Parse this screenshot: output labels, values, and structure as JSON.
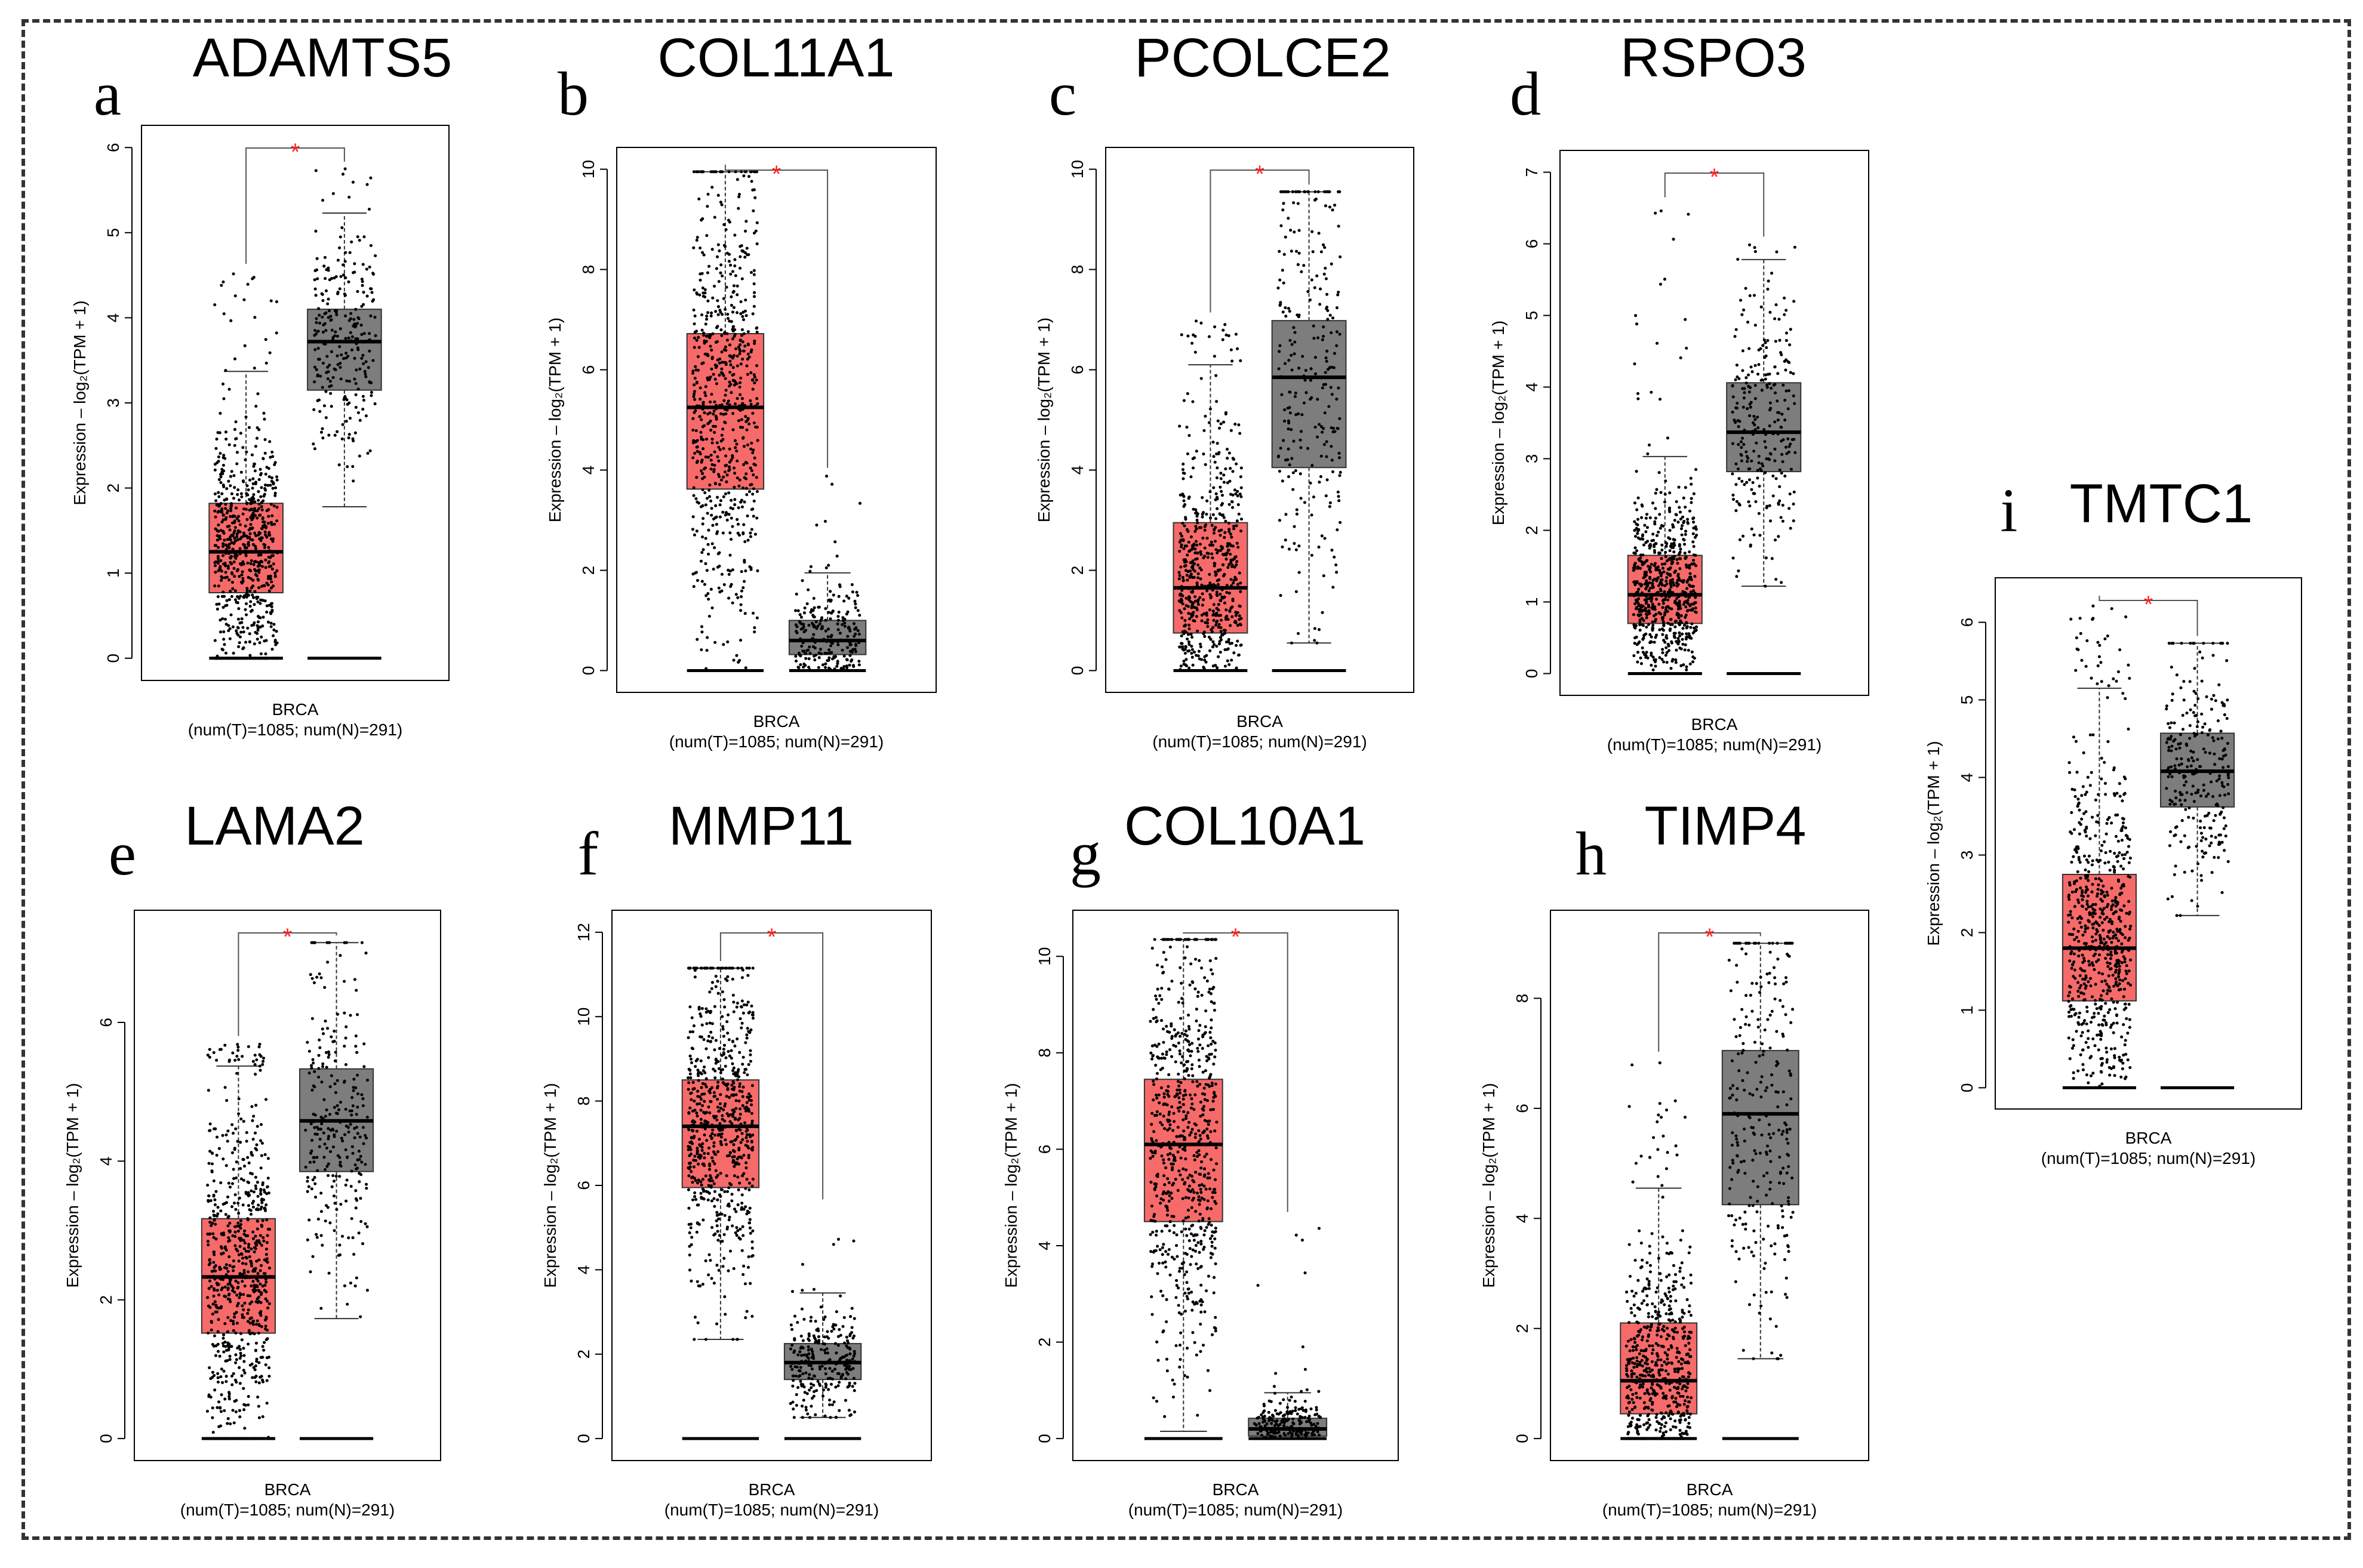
{
  "colors": {
    "tumor": "#f76a6a",
    "normal": "#7d7d7d",
    "significance": "#ff2020",
    "points": "#000000"
  },
  "chart_data": [
    {
      "type": "box",
      "panel": "a",
      "title": "ADAMTS5",
      "ylabel": "Expression – log₂(TPM + 1)",
      "xlabel": "BRCA",
      "counts": "(num(T)=1085; num(N)=291)",
      "yticks": [
        "0",
        "1",
        "2",
        "3",
        "4",
        "5",
        "6"
      ],
      "ylim": [
        0,
        6
      ],
      "significance": "*",
      "series": [
        {
          "group": "T",
          "n": 1085,
          "min": 0,
          "q1": 0.77,
          "median": 1.25,
          "q3": 1.82,
          "max": 3.37,
          "whisker_low": 0,
          "point_max": 4.55
        },
        {
          "group": "N",
          "n": 291,
          "min": 1.18,
          "q1": 3.15,
          "median": 3.72,
          "q3": 4.1,
          "max": 5.23,
          "whisker_low": 1.78,
          "point_max": 5.75
        }
      ]
    },
    {
      "type": "box",
      "panel": "b",
      "title": "COL11A1",
      "ylabel": "Expression – log₂(TPM + 1)",
      "xlabel": "BRCA",
      "counts": "(num(T)=1085; num(N)=291)",
      "yticks": [
        "0",
        "2",
        "4",
        "6",
        "8",
        "10"
      ],
      "ylim": [
        0,
        10
      ],
      "significance": "*",
      "series": [
        {
          "group": "T",
          "n": 1085,
          "min": 0,
          "q1": 3.62,
          "median": 5.25,
          "q3": 6.72,
          "max": 9.95,
          "whisker_low": 0,
          "point_max": 9.95
        },
        {
          "group": "N",
          "n": 291,
          "min": 0,
          "q1": 0.32,
          "median": 0.6,
          "q3": 1.0,
          "max": 1.95,
          "whisker_low": 0,
          "point_max": 3.9
        }
      ]
    },
    {
      "type": "box",
      "panel": "c",
      "title": "PCOLCE2",
      "ylabel": "Expression – log₂(TPM + 1)",
      "xlabel": "BRCA",
      "counts": "(num(T)=1085; num(N)=291)",
      "yticks": [
        "0",
        "2",
        "4",
        "6",
        "8",
        "10"
      ],
      "ylim": [
        0,
        10
      ],
      "significance": "*",
      "series": [
        {
          "group": "T",
          "n": 1085,
          "min": 0,
          "q1": 0.75,
          "median": 1.65,
          "q3": 2.95,
          "max": 6.1,
          "whisker_low": 0,
          "point_max": 7.0
        },
        {
          "group": "N",
          "n": 291,
          "min": 0.55,
          "q1": 4.05,
          "median": 5.85,
          "q3": 6.98,
          "max": 9.55,
          "whisker_low": 0.55,
          "point_max": 9.55
        }
      ]
    },
    {
      "type": "box",
      "panel": "d",
      "title": "RSPO3",
      "ylabel": "Expression – log₂(TPM + 1)",
      "xlabel": "BRCA",
      "counts": "(num(T)=1085; num(N)=291)",
      "yticks": [
        "0",
        "1",
        "2",
        "3",
        "4",
        "5",
        "6",
        "7"
      ],
      "ylim": [
        0,
        7
      ],
      "significance": "*",
      "series": [
        {
          "group": "T",
          "n": 1085,
          "min": 0,
          "q1": 0.7,
          "median": 1.1,
          "q3": 1.65,
          "max": 3.03,
          "whisker_low": 0,
          "point_max": 6.55
        },
        {
          "group": "N",
          "n": 291,
          "min": 1.22,
          "q1": 2.82,
          "median": 3.37,
          "q3": 4.06,
          "max": 5.78,
          "whisker_low": 1.22,
          "point_max": 6.0
        }
      ]
    },
    {
      "type": "box",
      "panel": "e",
      "title": "LAMA2",
      "ylabel": "Expression – log₂(TPM + 1)",
      "xlabel": "BRCA",
      "counts": "(num(T)=1085; num(N)=291)",
      "yticks": [
        "0",
        "2",
        "4",
        "6"
      ],
      "ylim": [
        0,
        7.3
      ],
      "significance": "*",
      "series": [
        {
          "group": "T",
          "n": 1085,
          "min": 0,
          "q1": 1.52,
          "median": 2.33,
          "q3": 3.17,
          "max": 5.37,
          "whisker_low": 0,
          "point_max": 5.7
        },
        {
          "group": "N",
          "n": 291,
          "min": 1.73,
          "q1": 3.85,
          "median": 4.58,
          "q3": 5.33,
          "max": 7.15,
          "whisker_low": 1.73,
          "point_max": 7.15
        }
      ]
    },
    {
      "type": "box",
      "panel": "f",
      "title": "MMP11",
      "ylabel": "Expression – log₂(TPM + 1)",
      "xlabel": "BRCA",
      "counts": "(num(T)=1085; num(N)=291)",
      "yticks": [
        "0",
        "2",
        "4",
        "6",
        "8",
        "10",
        "12"
      ],
      "ylim": [
        0,
        12
      ],
      "significance": "*",
      "series": [
        {
          "group": "T",
          "n": 1085,
          "min": 0,
          "q1": 5.95,
          "median": 7.4,
          "q3": 8.5,
          "max": 11.15,
          "whisker_low": 2.35,
          "point_max": 11.15
        },
        {
          "group": "N",
          "n": 291,
          "min": 0,
          "q1": 1.4,
          "median": 1.8,
          "q3": 2.25,
          "max": 3.45,
          "whisker_low": 0.5,
          "point_max": 5.5
        }
      ]
    },
    {
      "type": "box",
      "panel": "g",
      "title": "COL10A1",
      "ylabel": "Expression – log₂(TPM + 1)",
      "xlabel": "BRCA",
      "counts": "(num(T)=1085; num(N)=291)",
      "yticks": [
        "0",
        "2",
        "4",
        "6",
        "8",
        "10"
      ],
      "ylim": [
        0,
        10.5
      ],
      "significance": "*",
      "series": [
        {
          "group": "T",
          "n": 1085,
          "min": 0,
          "q1": 4.5,
          "median": 6.1,
          "q3": 7.45,
          "max": 10.35,
          "whisker_low": 0.15,
          "point_max": 10.35
        },
        {
          "group": "N",
          "n": 291,
          "min": 0,
          "q1": 0.05,
          "median": 0.2,
          "q3": 0.42,
          "max": 0.95,
          "whisker_low": 0,
          "point_max": 4.55
        }
      ]
    },
    {
      "type": "box",
      "panel": "h",
      "title": "TIMP4",
      "ylabel": "Expression – log₂(TPM + 1)",
      "xlabel": "BRCA",
      "counts": "(num(T)=1085; num(N)=291)",
      "yticks": [
        "0",
        "2",
        "4",
        "6",
        "8"
      ],
      "ylim": [
        0,
        9.2
      ],
      "significance": "*",
      "series": [
        {
          "group": "T",
          "n": 1085,
          "min": 0,
          "q1": 0.45,
          "median": 1.05,
          "q3": 2.1,
          "max": 4.55,
          "whisker_low": 0,
          "point_max": 6.9
        },
        {
          "group": "N",
          "n": 291,
          "min": 1.45,
          "q1": 4.25,
          "median": 5.9,
          "q3": 7.05,
          "max": 9.0,
          "whisker_low": 1.45,
          "point_max": 9.0
        }
      ]
    },
    {
      "type": "box",
      "panel": "i",
      "title": "TMTC1",
      "ylabel": "Expression – log₂(TPM + 1)",
      "xlabel": "BRCA",
      "counts": "(num(T)=1085; num(N)=291)",
      "yticks": [
        "0",
        "1",
        "2",
        "3",
        "4",
        "5",
        "6"
      ],
      "ylim": [
        0,
        6.3
      ],
      "significance": "*",
      "series": [
        {
          "group": "T",
          "n": 1085,
          "min": 0,
          "q1": 1.12,
          "median": 1.8,
          "q3": 2.75,
          "max": 5.15,
          "whisker_low": 0,
          "point_max": 6.25
        },
        {
          "group": "N",
          "n": 291,
          "min": 1.68,
          "q1": 3.62,
          "median": 4.08,
          "q3": 4.57,
          "max": 5.73,
          "whisker_low": 2.22,
          "point_max": 5.73
        }
      ]
    }
  ]
}
